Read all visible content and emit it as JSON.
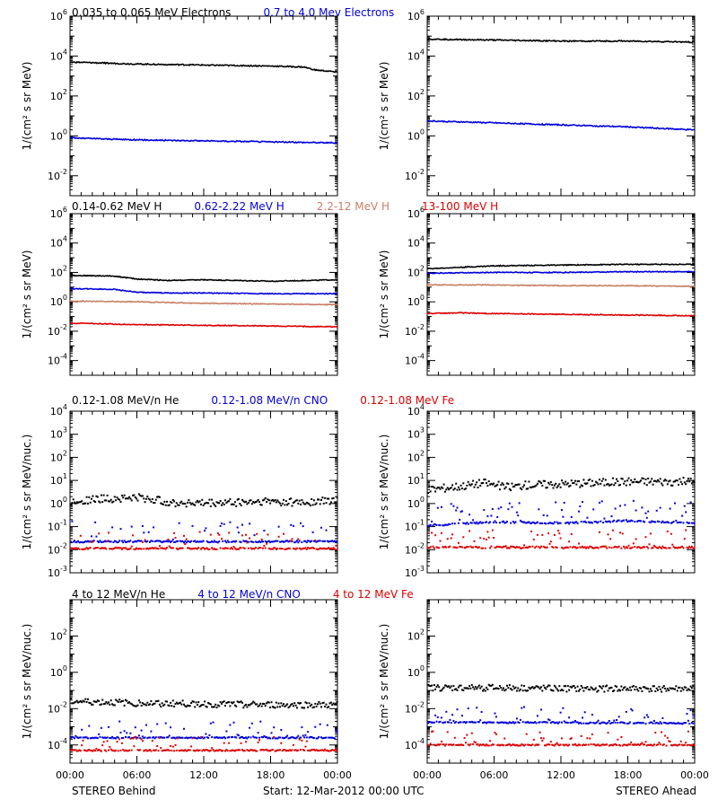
{
  "footer": {
    "left": "STEREO Behind",
    "center": "Start: 12-Mar-2012 00:00 UTC",
    "right": "STEREO Ahead"
  },
  "xticks": [
    "00:00",
    "06:00",
    "12:00",
    "18:00",
    "00:00"
  ],
  "rows": [
    {
      "ylabel": "1/(cm² s sr MeV)",
      "ymin": -3,
      "ymax": 6,
      "major_exps": [
        -2,
        0,
        2,
        4,
        6
      ],
      "legend": [
        {
          "text": "0.035 to 0.065 MeV Electrons",
          "color": "#000000"
        },
        {
          "text": "0.7 to 4.0 Mev Electrons",
          "color": "#0000dd"
        }
      ]
    },
    {
      "ylabel": "1/(cm² s sr MeV)",
      "ymin": -5,
      "ymax": 6,
      "major_exps": [
        -4,
        -2,
        0,
        2,
        4,
        6
      ],
      "legend": [
        {
          "text": "0.14-0.62 MeV H",
          "color": "#000000"
        },
        {
          "text": "0.62-2.22 MeV H",
          "color": "#0000dd"
        },
        {
          "text": "2.2-12 MeV H",
          "color": "#c87f65"
        },
        {
          "text": "13-100 MeV H",
          "color": "#dd0000"
        }
      ]
    },
    {
      "ylabel": "1/(cm² s sr MeV/nuc.)",
      "ymin": -3,
      "ymax": 4,
      "major_exps": [
        -3,
        -2,
        -1,
        0,
        1,
        2,
        3,
        4
      ],
      "legend": [
        {
          "text": "0.12-1.08 MeV/n He",
          "color": "#000000"
        },
        {
          "text": "0.12-1.08 MeV/n CNO",
          "color": "#0000dd"
        },
        {
          "text": "0.12-1.08 MeV Fe",
          "color": "#dd0000"
        }
      ]
    },
    {
      "ylabel": "1/(cm² s sr MeV/nuc.)",
      "ymin": -5,
      "ymax": 4,
      "major_exps": [
        -4,
        -2,
        0,
        2
      ],
      "legend": [
        {
          "text": "4 to 12 MeV/n He",
          "color": "#000000"
        },
        {
          "text": "4 to 12 MeV/n CNO",
          "color": "#0000dd"
        },
        {
          "text": "4 to 12 MeV Fe",
          "color": "#dd0000"
        }
      ]
    }
  ],
  "chart_data": [
    {
      "type": "line",
      "panel": "Behind electrons",
      "x_hours": [
        0,
        24
      ],
      "ylim": [
        "1e-3",
        "1e6"
      ],
      "yscale": "log",
      "series": [
        {
          "name": "0.035 to 0.065 MeV Electrons",
          "color": "#000000",
          "style": "line",
          "x": [
            0,
            6,
            12,
            18,
            21,
            22,
            24
          ],
          "log10": [
            3.7,
            3.6,
            3.55,
            3.5,
            3.45,
            3.3,
            3.2
          ]
        },
        {
          "name": "0.7 to 4.0 Mev Electrons",
          "color": "#0000dd",
          "style": "line",
          "x": [
            0,
            6,
            12,
            18,
            24
          ],
          "log10": [
            -0.1,
            -0.2,
            -0.25,
            -0.3,
            -0.35
          ]
        }
      ]
    },
    {
      "type": "line",
      "panel": "Ahead electrons",
      "x_hours": [
        0,
        24
      ],
      "ylim": [
        "1e-3",
        "1e6"
      ],
      "yscale": "log",
      "series": [
        {
          "name": "0.035 to 0.065 MeV Electrons",
          "color": "#000000",
          "style": "line",
          "x": [
            0,
            6,
            12,
            18,
            24
          ],
          "log10": [
            4.85,
            4.8,
            4.75,
            4.75,
            4.7
          ]
        },
        {
          "name": "0.7 to 4.0 Mev Electrons",
          "color": "#0000dd",
          "style": "line",
          "x": [
            0,
            6,
            12,
            18,
            24
          ],
          "log10": [
            0.75,
            0.65,
            0.55,
            0.45,
            0.3
          ]
        }
      ]
    },
    {
      "type": "line",
      "panel": "Behind protons",
      "x_hours": [
        0,
        24
      ],
      "ylim": [
        "1e-5",
        "1e6"
      ],
      "yscale": "log",
      "series": [
        {
          "name": "0.14-0.62 MeV H",
          "color": "#000000",
          "style": "line",
          "x": [
            0,
            4,
            6,
            9,
            12,
            18,
            24
          ],
          "log10": [
            1.8,
            1.75,
            1.55,
            1.45,
            1.5,
            1.4,
            1.5
          ]
        },
        {
          "name": "0.62-2.22 MeV H",
          "color": "#0000dd",
          "style": "line",
          "x": [
            0,
            4,
            6,
            9,
            12,
            18,
            24
          ],
          "log10": [
            0.9,
            0.85,
            0.65,
            0.6,
            0.6,
            0.55,
            0.55
          ]
        },
        {
          "name": "2.2-12 MeV H",
          "color": "#c87f65",
          "style": "line",
          "x": [
            0,
            6,
            12,
            18,
            24
          ],
          "log10": [
            0.05,
            0.0,
            -0.1,
            -0.15,
            -0.2
          ]
        },
        {
          "name": "13-100 MeV H",
          "color": "#dd0000",
          "style": "line",
          "x": [
            0,
            6,
            12,
            18,
            24
          ],
          "log10": [
            -1.45,
            -1.55,
            -1.6,
            -1.65,
            -1.7
          ]
        }
      ]
    },
    {
      "type": "line",
      "panel": "Ahead protons",
      "x_hours": [
        0,
        24
      ],
      "ylim": [
        "1e-5",
        "1e6"
      ],
      "yscale": "log",
      "series": [
        {
          "name": "0.14-0.62 MeV H",
          "color": "#000000",
          "style": "line",
          "x": [
            0,
            3,
            6,
            12,
            18,
            24
          ],
          "log10": [
            2.25,
            2.35,
            2.45,
            2.5,
            2.55,
            2.55
          ]
        },
        {
          "name": "0.62-2.22 MeV H",
          "color": "#0000dd",
          "style": "line",
          "x": [
            0,
            6,
            12,
            18,
            24
          ],
          "log10": [
            1.95,
            2.0,
            2.0,
            2.05,
            2.05
          ]
        },
        {
          "name": "2.2-12 MeV H",
          "color": "#c87f65",
          "style": "line",
          "x": [
            0,
            6,
            12,
            18,
            24
          ],
          "log10": [
            1.15,
            1.15,
            1.1,
            1.1,
            1.05
          ]
        },
        {
          "name": "13-100 MeV H",
          "color": "#dd0000",
          "style": "line",
          "x": [
            0,
            3,
            6,
            12,
            18,
            24
          ],
          "log10": [
            -0.8,
            -0.75,
            -0.8,
            -0.85,
            -0.9,
            -0.95
          ]
        }
      ]
    },
    {
      "type": "scatter",
      "panel": "Behind low-energy ions",
      "x_hours": [
        0,
        24
      ],
      "ylim": [
        "1e-3",
        "1e4"
      ],
      "yscale": "log",
      "series": [
        {
          "name": "0.12-1.08 MeV/n He",
          "color": "#000000",
          "style": "points",
          "x": [
            0,
            3,
            6,
            9,
            12,
            15,
            18,
            21,
            24
          ],
          "log10": [
            0.1,
            0.2,
            0.25,
            0.05,
            0.0,
            0.05,
            0.1,
            0.05,
            0.15
          ]
        },
        {
          "name": "0.12-1.08 MeV/n CNO",
          "color": "#0000dd",
          "style": "points",
          "x": [
            0,
            24
          ],
          "log10": [
            -1.65,
            -1.65
          ]
        },
        {
          "name": "0.12-1.08 MeV Fe",
          "color": "#dd0000",
          "style": "points",
          "x": [
            0,
            24
          ],
          "log10": [
            -1.95,
            -1.95
          ]
        }
      ]
    },
    {
      "type": "scatter",
      "panel": "Ahead low-energy ions",
      "x_hours": [
        0,
        24
      ],
      "ylim": [
        "1e-3",
        "1e4"
      ],
      "yscale": "log",
      "series": [
        {
          "name": "0.12-1.08 MeV/n He",
          "color": "#000000",
          "style": "points",
          "x": [
            0,
            3,
            5,
            7,
            9,
            12,
            18,
            24
          ],
          "log10": [
            0.6,
            0.75,
            0.9,
            0.7,
            0.8,
            0.85,
            0.95,
            0.95
          ]
        },
        {
          "name": "0.12-1.08 MeV/n CNO",
          "color": "#0000dd",
          "style": "points",
          "x": [
            0,
            6,
            12,
            18,
            24
          ],
          "log10": [
            -0.95,
            -0.8,
            -0.85,
            -0.75,
            -0.85
          ]
        },
        {
          "name": "0.12-1.08 MeV Fe",
          "color": "#dd0000",
          "style": "points",
          "x": [
            0,
            24
          ],
          "log10": [
            -1.9,
            -1.9
          ]
        }
      ]
    },
    {
      "type": "scatter",
      "panel": "Behind high-energy ions",
      "x_hours": [
        0,
        24
      ],
      "ylim": [
        "1e-5",
        "1e4"
      ],
      "yscale": "log",
      "series": [
        {
          "name": "4 to 12 MeV/n He",
          "color": "#000000",
          "style": "points",
          "x": [
            0,
            6,
            12,
            18,
            24
          ],
          "log10": [
            -1.6,
            -1.7,
            -1.75,
            -1.8,
            -1.8
          ]
        },
        {
          "name": "4 to 12 MeV/n CNO",
          "color": "#0000dd",
          "style": "points",
          "x": [
            0,
            24
          ],
          "log10": [
            -3.6,
            -3.6
          ]
        },
        {
          "name": "4 to 12 MeV Fe",
          "color": "#dd0000",
          "style": "points",
          "x": [
            0,
            24
          ],
          "log10": [
            -4.3,
            -4.3
          ]
        }
      ]
    },
    {
      "type": "scatter",
      "panel": "Ahead high-energy ions",
      "x_hours": [
        0,
        24
      ],
      "ylim": [
        "1e-5",
        "1e4"
      ],
      "yscale": "log",
      "series": [
        {
          "name": "4 to 12 MeV/n He",
          "color": "#000000",
          "style": "points",
          "x": [
            0,
            6,
            12,
            18,
            24
          ],
          "log10": [
            -0.85,
            -0.85,
            -0.9,
            -0.9,
            -0.9
          ]
        },
        {
          "name": "4 to 12 MeV/n CNO",
          "color": "#0000dd",
          "style": "points",
          "x": [
            0,
            24
          ],
          "log10": [
            -2.75,
            -2.8
          ]
        },
        {
          "name": "4 to 12 MeV Fe",
          "color": "#dd0000",
          "style": "points",
          "x": [
            0,
            24
          ],
          "log10": [
            -4.0,
            -4.0
          ]
        }
      ]
    }
  ]
}
